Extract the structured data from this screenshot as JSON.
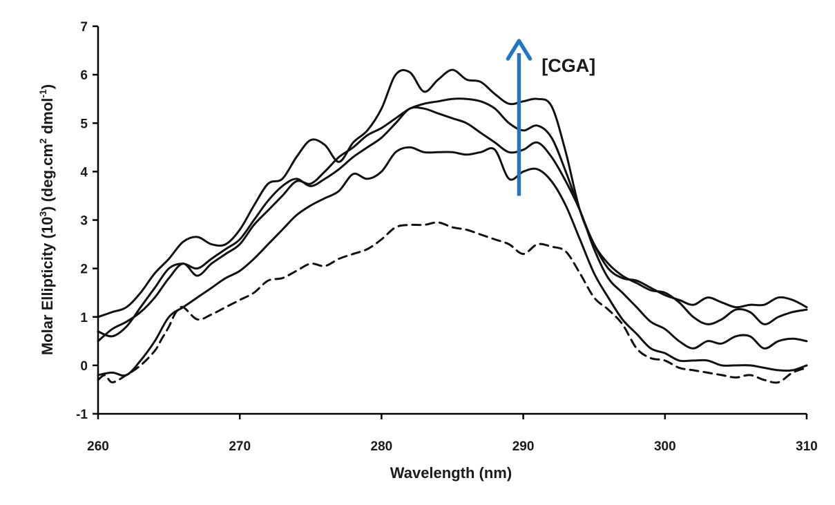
{
  "chart_data": {
    "type": "line",
    "xlabel": "Wavelength (nm)",
    "ylabel_parts": {
      "pre": "Molar Ellipticity (10",
      "exp1": "3",
      "mid": ")  (deg.cm",
      "exp2": "2",
      "mid2": " dmol",
      "exp3": "-1",
      "post": ")"
    },
    "xlim": [
      260,
      310
    ],
    "ylim": [
      -1,
      7
    ],
    "xticks": [
      260,
      270,
      280,
      290,
      300,
      310
    ],
    "yticks": [
      -1,
      0,
      1,
      2,
      3,
      4,
      5,
      6,
      7
    ],
    "grid": false,
    "annotation": {
      "text": "[CGA]",
      "arrow_color": "#1f77c4",
      "arrow_x": 289.7,
      "arrow_from_y": 3.5,
      "arrow_to_y": 6.7,
      "label_x": 291.3,
      "label_y": 6.2
    },
    "series": [
      {
        "style": "dashed",
        "x": [
          260,
          260.5,
          261,
          262,
          263,
          264,
          264.5,
          265,
          265.5,
          266,
          267,
          268,
          269,
          270,
          271,
          272,
          273,
          274,
          275,
          276,
          277,
          278,
          279,
          280,
          281,
          282,
          283,
          284,
          285,
          286,
          287,
          288,
          289,
          290,
          291,
          292,
          293,
          294,
          295,
          296,
          297,
          298,
          299,
          300,
          301,
          302,
          303,
          304,
          305,
          306,
          307,
          308,
          309,
          310
        ],
        "y": [
          -0.3,
          -0.2,
          -0.35,
          -0.2,
          0.0,
          0.3,
          0.55,
          0.8,
          1.1,
          1.2,
          0.95,
          1.05,
          1.2,
          1.35,
          1.5,
          1.75,
          1.8,
          1.95,
          2.1,
          2.05,
          2.2,
          2.3,
          2.4,
          2.6,
          2.85,
          2.9,
          2.9,
          2.95,
          2.85,
          2.8,
          2.7,
          2.6,
          2.5,
          2.3,
          2.5,
          2.45,
          2.35,
          1.9,
          1.4,
          1.15,
          0.85,
          0.35,
          0.15,
          0.1,
          -0.05,
          -0.1,
          -0.15,
          -0.2,
          -0.25,
          -0.2,
          -0.3,
          -0.35,
          -0.15,
          -0.05
        ]
      },
      {
        "style": "solid",
        "x": [
          260,
          261,
          262,
          263,
          264,
          265,
          266,
          267,
          268,
          269,
          270,
          271,
          272,
          273,
          274,
          275,
          276,
          277,
          278,
          279,
          280,
          281,
          282,
          283,
          284,
          285,
          286,
          287,
          288,
          289,
          290,
          291,
          292,
          293,
          294,
          295,
          296,
          297,
          298,
          299,
          300,
          301,
          302,
          303,
          304,
          305,
          306,
          307,
          308,
          309,
          310
        ],
        "y": [
          -0.2,
          -0.15,
          -0.2,
          0.1,
          0.5,
          1.0,
          1.2,
          1.4,
          1.6,
          1.8,
          1.95,
          2.2,
          2.5,
          2.8,
          3.1,
          3.3,
          3.45,
          3.6,
          3.95,
          3.85,
          4.0,
          4.4,
          4.5,
          4.4,
          4.4,
          4.4,
          4.35,
          4.4,
          4.45,
          3.85,
          4.0,
          4.05,
          3.8,
          3.3,
          2.6,
          1.9,
          1.4,
          0.95,
          0.65,
          0.35,
          0.25,
          0.1,
          0.1,
          0.1,
          0.0,
          0.0,
          0.0,
          -0.05,
          -0.1,
          -0.1,
          0.0
        ]
      },
      {
        "style": "solid",
        "x": [
          260,
          261,
          262,
          263,
          264,
          265,
          266,
          267,
          268,
          269,
          270,
          271,
          272,
          273,
          274,
          275,
          276,
          277,
          278,
          279,
          280,
          281,
          282,
          283,
          284,
          285,
          286,
          287,
          288,
          289,
          290,
          291,
          292,
          293,
          294,
          295,
          296,
          297,
          298,
          299,
          300,
          301,
          302,
          303,
          304,
          305,
          306,
          307,
          308,
          309,
          310
        ],
        "y": [
          0.7,
          0.6,
          0.8,
          1.2,
          1.6,
          2.0,
          2.1,
          2.0,
          2.2,
          2.4,
          2.6,
          3.0,
          3.4,
          3.7,
          3.85,
          3.7,
          3.85,
          4.05,
          4.3,
          4.5,
          4.7,
          5.0,
          5.3,
          5.3,
          5.2,
          5.1,
          5.0,
          4.8,
          4.6,
          4.4,
          4.45,
          4.6,
          4.3,
          3.8,
          3.2,
          2.4,
          1.8,
          1.5,
          1.2,
          0.9,
          0.75,
          0.5,
          0.35,
          0.5,
          0.45,
          0.6,
          0.6,
          0.35,
          0.5,
          0.55,
          0.5
        ]
      },
      {
        "style": "solid",
        "x": [
          260,
          261,
          262,
          263,
          264,
          265,
          266,
          267,
          268,
          269,
          270,
          271,
          272,
          273,
          274,
          275,
          276,
          277,
          278,
          279,
          280,
          281,
          282,
          283,
          284,
          285,
          286,
          287,
          288,
          289,
          290,
          291,
          292,
          293,
          294,
          295,
          296,
          297,
          298,
          299,
          300,
          301,
          302,
          303,
          304,
          305,
          306,
          307,
          308,
          309,
          310
        ],
        "y": [
          0.5,
          0.75,
          0.9,
          1.1,
          1.4,
          1.8,
          2.1,
          1.85,
          2.1,
          2.3,
          2.5,
          2.9,
          3.2,
          3.5,
          3.8,
          3.75,
          4.0,
          4.3,
          4.5,
          4.75,
          4.9,
          5.1,
          5.3,
          5.4,
          5.45,
          5.5,
          5.5,
          5.45,
          5.3,
          5.0,
          4.85,
          4.95,
          4.7,
          4.0,
          3.2,
          2.5,
          2.1,
          1.85,
          1.7,
          1.55,
          1.5,
          1.3,
          1.0,
          0.85,
          0.95,
          1.15,
          1.1,
          0.85,
          1.0,
          1.1,
          1.15
        ]
      },
      {
        "style": "solid",
        "x": [
          260,
          261,
          262,
          263,
          264,
          265,
          266,
          267,
          268,
          269,
          270,
          271,
          272,
          273,
          274,
          275,
          276,
          277,
          278,
          279,
          280,
          281,
          282,
          283,
          284,
          285,
          286,
          287,
          288,
          289,
          290,
          291,
          292,
          293,
          294,
          295,
          296,
          297,
          298,
          299,
          300,
          301,
          302,
          303,
          304,
          305,
          306,
          307,
          308,
          309,
          310
        ],
        "y": [
          1.0,
          1.1,
          1.2,
          1.5,
          1.9,
          2.2,
          2.55,
          2.65,
          2.5,
          2.5,
          2.8,
          3.3,
          3.75,
          3.85,
          4.3,
          4.65,
          4.55,
          4.2,
          4.6,
          4.85,
          5.3,
          6.0,
          6.05,
          5.65,
          5.9,
          6.1,
          5.9,
          5.85,
          5.6,
          5.4,
          5.45,
          5.5,
          5.35,
          4.4,
          3.2,
          2.5,
          2.0,
          1.8,
          1.75,
          1.6,
          1.45,
          1.35,
          1.25,
          1.4,
          1.3,
          1.2,
          1.25,
          1.25,
          1.4,
          1.35,
          1.2
        ]
      }
    ]
  }
}
